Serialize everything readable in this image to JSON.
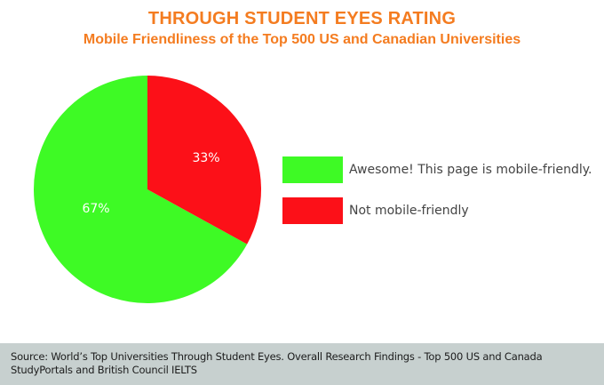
{
  "header": {
    "title": "THROUGH STUDENT EYES RATING",
    "subtitle": "Mobile Friendliness of the Top 500 US and Canadian Universities"
  },
  "colors": {
    "title": "#f47c20",
    "mobile_friendly": "#3efa25",
    "not_mobile_friendly": "#fc1018",
    "footer_bg": "#c7d0cf"
  },
  "chart_data": {
    "type": "pie",
    "title": "THROUGH STUDENT EYES RATING",
    "subtitle": "Mobile Friendliness of the Top 500 US and Canadian Universities",
    "categories": [
      "Awesome! This page is mobile-friendly.",
      "Not mobile-friendly"
    ],
    "values": [
      67,
      33
    ],
    "labels": [
      "67%",
      "33%"
    ],
    "colors": [
      "#3efa25",
      "#fc1018"
    ],
    "start_angle": "12 o'clock, 'Not mobile-friendly' slice clockwise first",
    "legend_position": "right"
  },
  "legend": {
    "items": [
      {
        "label": "Awesome! This page is mobile-friendly.",
        "color": "#3efa25"
      },
      {
        "label": "Not mobile-friendly",
        "color": "#fc1018"
      }
    ]
  },
  "footer": {
    "line1": "Source: World’s Top Universities Through Student Eyes. Overall Research Findings - Top 500 US and Canada",
    "line2": "StudyPortals and British Council IELTS"
  }
}
